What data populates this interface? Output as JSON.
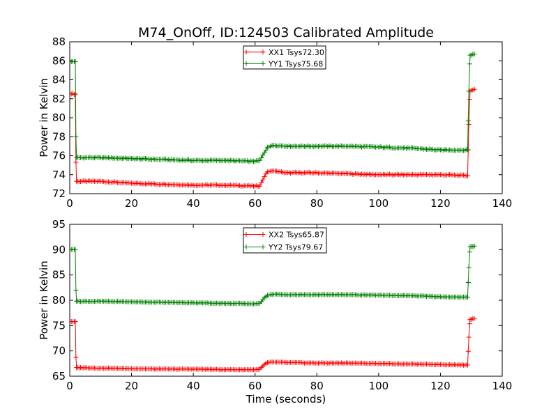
{
  "figure": {
    "title": "M74_OnOff, ID:124503 Calibrated Amplitude",
    "xlabel": "Time (seconds)"
  },
  "chart_data": [
    {
      "type": "line",
      "title": "M74_OnOff, ID:124503 Calibrated Amplitude",
      "xlabel": "",
      "ylabel": "Power in Kelvin",
      "xlim": [
        0,
        140
      ],
      "ylim": [
        72,
        88
      ],
      "xticks": [
        0,
        20,
        40,
        60,
        80,
        100,
        120,
        140
      ],
      "yticks": [
        72,
        74,
        76,
        78,
        80,
        82,
        84,
        86,
        88
      ],
      "legend_position": "top-center",
      "series": [
        {
          "name": "XX1 Tsys72.30",
          "color": "#ff0000",
          "keypoints": [
            [
              0.5,
              82.5
            ],
            [
              1.8,
              82.5
            ],
            [
              2.0,
              75.3
            ],
            [
              2.2,
              73.3
            ],
            [
              10,
              73.3
            ],
            [
              20,
              73.1
            ],
            [
              30,
              73.0
            ],
            [
              40,
              72.9
            ],
            [
              50,
              72.9
            ],
            [
              60,
              72.8
            ],
            [
              61.5,
              72.8
            ],
            [
              63,
              73.8
            ],
            [
              64,
              74.3
            ],
            [
              66,
              74.4
            ],
            [
              70,
              74.2
            ],
            [
              80,
              74.2
            ],
            [
              90,
              74.1
            ],
            [
              100,
              74.0
            ],
            [
              110,
              74.0
            ],
            [
              120,
              74.0
            ],
            [
              128.8,
              73.9
            ],
            [
              129.2,
              79.3
            ],
            [
              129.6,
              82.8
            ],
            [
              131,
              83.0
            ]
          ]
        },
        {
          "name": "YY1 Tsys75.68",
          "color": "#008000",
          "keypoints": [
            [
              0.5,
              85.9
            ],
            [
              1.8,
              85.9
            ],
            [
              2.0,
              78.0
            ],
            [
              2.2,
              75.8
            ],
            [
              10,
              75.8
            ],
            [
              20,
              75.7
            ],
            [
              30,
              75.6
            ],
            [
              40,
              75.5
            ],
            [
              50,
              75.5
            ],
            [
              60,
              75.4
            ],
            [
              61.5,
              75.5
            ],
            [
              63,
              76.3
            ],
            [
              64,
              76.9
            ],
            [
              66,
              77.1
            ],
            [
              70,
              77.0
            ],
            [
              80,
              77.0
            ],
            [
              90,
              77.0
            ],
            [
              100,
              76.9
            ],
            [
              110,
              76.8
            ],
            [
              120,
              76.6
            ],
            [
              128.8,
              76.6
            ],
            [
              129.2,
              82.8
            ],
            [
              129.6,
              86.6
            ],
            [
              131,
              86.7
            ]
          ]
        }
      ]
    },
    {
      "type": "line",
      "title": "",
      "xlabel": "Time (seconds)",
      "ylabel": "Power in Kelvin",
      "xlim": [
        0,
        140
      ],
      "ylim": [
        65,
        95
      ],
      "xticks": [
        0,
        20,
        40,
        60,
        80,
        100,
        120,
        140
      ],
      "yticks": [
        65,
        70,
        75,
        80,
        85,
        90,
        95
      ],
      "legend_position": "top-center",
      "series": [
        {
          "name": "XX2 Tsys65.87",
          "color": "#ff0000",
          "keypoints": [
            [
              0.5,
              75.8
            ],
            [
              1.8,
              75.8
            ],
            [
              2.0,
              68.7
            ],
            [
              2.2,
              66.7
            ],
            [
              10,
              66.6
            ],
            [
              20,
              66.5
            ],
            [
              30,
              66.4
            ],
            [
              40,
              66.4
            ],
            [
              50,
              66.3
            ],
            [
              60,
              66.3
            ],
            [
              61.5,
              66.4
            ],
            [
              63,
              67.3
            ],
            [
              64,
              67.7
            ],
            [
              66,
              67.8
            ],
            [
              70,
              67.7
            ],
            [
              80,
              67.6
            ],
            [
              90,
              67.6
            ],
            [
              100,
              67.5
            ],
            [
              110,
              67.4
            ],
            [
              120,
              67.3
            ],
            [
              128.8,
              67.2
            ],
            [
              129.2,
              72.7
            ],
            [
              129.6,
              76.2
            ],
            [
              131,
              76.4
            ]
          ]
        },
        {
          "name": "YY2 Tsys79.67",
          "color": "#008000",
          "keypoints": [
            [
              0.5,
              90.0
            ],
            [
              1.8,
              90.0
            ],
            [
              2.0,
              82.0
            ],
            [
              2.2,
              79.8
            ],
            [
              10,
              79.8
            ],
            [
              20,
              79.7
            ],
            [
              30,
              79.6
            ],
            [
              40,
              79.5
            ],
            [
              50,
              79.4
            ],
            [
              60,
              79.3
            ],
            [
              61.5,
              79.4
            ],
            [
              63,
              80.5
            ],
            [
              64,
              81.0
            ],
            [
              66,
              81.2
            ],
            [
              70,
              81.1
            ],
            [
              80,
              81.1
            ],
            [
              90,
              81.1
            ],
            [
              100,
              81.0
            ],
            [
              110,
              80.9
            ],
            [
              120,
              80.7
            ],
            [
              128.8,
              80.6
            ],
            [
              129.2,
              86.5
            ],
            [
              129.6,
              90.6
            ],
            [
              131,
              90.7
            ]
          ]
        }
      ]
    }
  ]
}
